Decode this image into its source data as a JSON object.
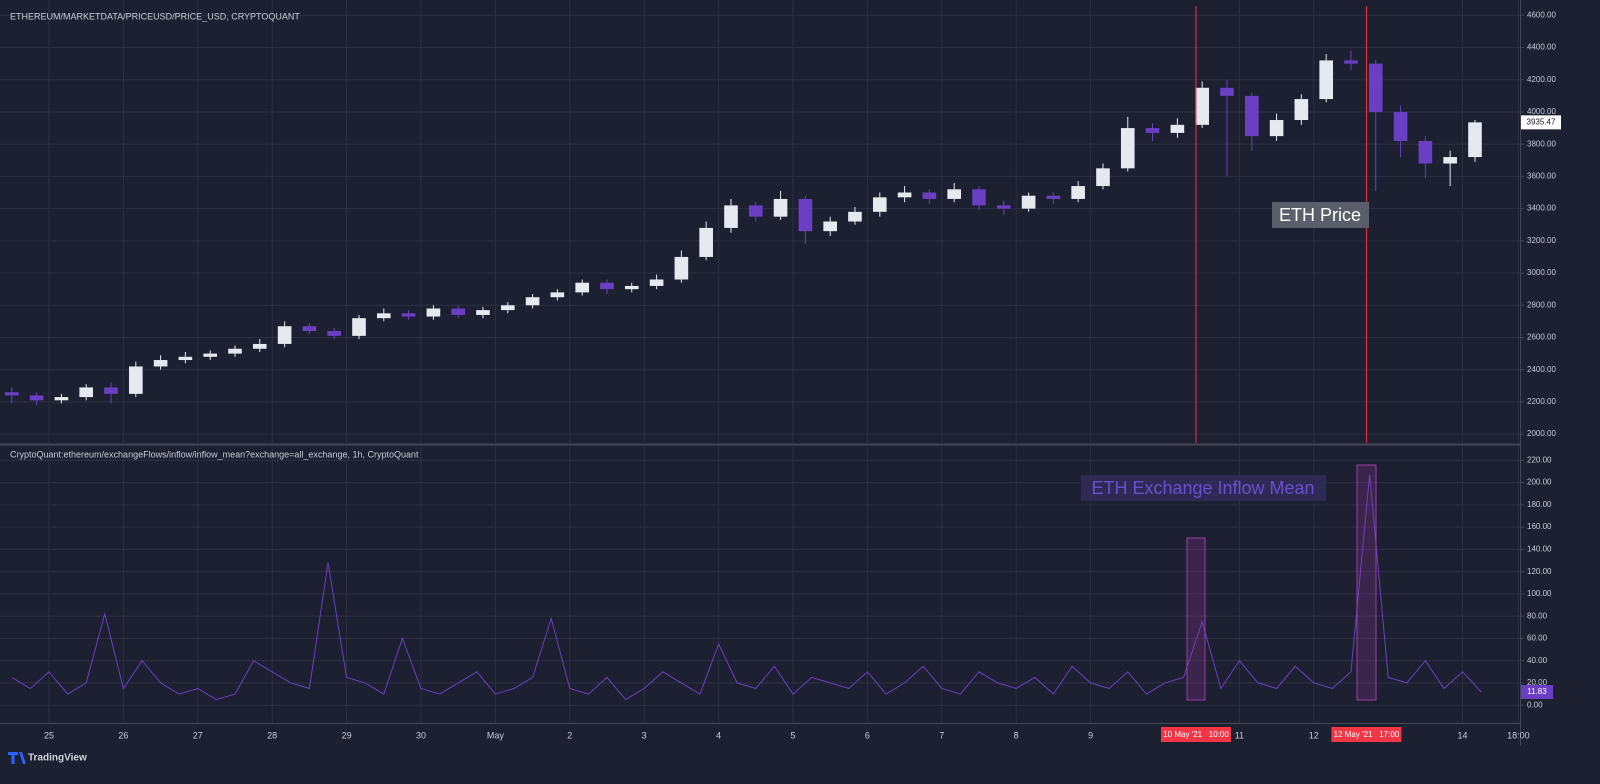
{
  "chart_data": [
    {
      "type": "candlestick",
      "title": "ETHEREUM/MARKETDATA/PRICEUSD/PRICE_USD, CRYPTOQUANT",
      "annotation": "ETH Price",
      "up_color": "#e6e9f0",
      "down_color": "#6a3fc4",
      "x": [
        0.5,
        0.833,
        1.167,
        1.5,
        1.833,
        2.167,
        2.5,
        2.833,
        3.167,
        3.5,
        3.833,
        4.167,
        4.5,
        4.833,
        5.167,
        5.5,
        5.833,
        6.167,
        6.5,
        6.833,
        7.167,
        7.5,
        7.833,
        8.167,
        8.5,
        8.833,
        9.167,
        9.5,
        9.833,
        10.167,
        10.5,
        10.833,
        11.167,
        11.5,
        11.833,
        12.167,
        12.5,
        12.833,
        13.167,
        13.5,
        13.833,
        14.167,
        14.5,
        14.833,
        15.167,
        15.5,
        15.833,
        16.167,
        16.5,
        16.833,
        17.167,
        17.5,
        17.833,
        18.167,
        18.5,
        18.833,
        19.167,
        19.5,
        19.833,
        20.167
      ],
      "open": [
        2260,
        2240,
        2210,
        2230,
        2290,
        2250,
        2420,
        2460,
        2480,
        2500,
        2530,
        2560,
        2670,
        2640,
        2610,
        2720,
        2750,
        2730,
        2780,
        2740,
        2770,
        2800,
        2850,
        2880,
        2940,
        2900,
        2920,
        2960,
        3100,
        3280,
        3420,
        3350,
        3460,
        3260,
        3320,
        3380,
        3470,
        3500,
        3460,
        3520,
        3420,
        3400,
        3480,
        3460,
        3540,
        3650,
        3900,
        3870,
        3920,
        4150,
        4100,
        3850,
        3950,
        4080,
        4320,
        4300,
        4000,
        3820,
        3680,
        3720
      ],
      "high": [
        2290,
        2260,
        2250,
        2310,
        2320,
        2450,
        2490,
        2510,
        2520,
        2550,
        2590,
        2700,
        2690,
        2660,
        2740,
        2780,
        2770,
        2800,
        2800,
        2790,
        2820,
        2870,
        2900,
        2960,
        2960,
        2940,
        2990,
        3140,
        3320,
        3460,
        3440,
        3510,
        3480,
        3350,
        3410,
        3500,
        3540,
        3520,
        3560,
        3540,
        3450,
        3500,
        3500,
        3570,
        3680,
        3970,
        3930,
        3960,
        4190,
        4200,
        4120,
        3990,
        4110,
        4360,
        4380,
        4320,
        4040,
        3850,
        3760,
        3950
      ],
      "low": [
        2190,
        2180,
        2190,
        2210,
        2190,
        2230,
        2400,
        2440,
        2460,
        2480,
        2510,
        2540,
        2620,
        2590,
        2590,
        2700,
        2710,
        2710,
        2720,
        2720,
        2750,
        2780,
        2830,
        2860,
        2870,
        2880,
        2900,
        2940,
        3080,
        3250,
        3320,
        3330,
        3180,
        3230,
        3300,
        3350,
        3440,
        3430,
        3440,
        3390,
        3360,
        3380,
        3430,
        3440,
        3520,
        3630,
        3820,
        3840,
        3900,
        3600,
        3760,
        3820,
        3920,
        4060,
        4260,
        3510,
        3720,
        3590,
        3540,
        3690
      ],
      "close": [
        2240,
        2210,
        2230,
        2290,
        2250,
        2420,
        2460,
        2480,
        2500,
        2530,
        2560,
        2670,
        2640,
        2610,
        2720,
        2750,
        2730,
        2780,
        2740,
        2770,
        2800,
        2850,
        2880,
        2940,
        2900,
        2920,
        2960,
        3100,
        3280,
        3420,
        3350,
        3460,
        3260,
        3320,
        3380,
        3470,
        3500,
        3460,
        3520,
        3420,
        3400,
        3480,
        3460,
        3540,
        3650,
        3900,
        3870,
        3920,
        4150,
        4100,
        3850,
        3950,
        4080,
        4320,
        4300,
        4000,
        3820,
        3680,
        3720,
        3935.47
      ],
      "xlim": [
        0.3414,
        20.772
      ],
      "ylim": [
        1945,
        4695
      ],
      "yticks": [
        {
          "value": 2000,
          "label": "2000.00"
        },
        {
          "value": 2200,
          "label": "2200.00"
        },
        {
          "value": 2400,
          "label": "2400.00"
        },
        {
          "value": 2600,
          "label": "2600.00"
        },
        {
          "value": 2800,
          "label": "2800.00"
        },
        {
          "value": 3000,
          "label": "3000.00"
        },
        {
          "value": 3200,
          "label": "3200.00"
        },
        {
          "value": 3400,
          "label": "3400.00"
        },
        {
          "value": 3600,
          "label": "3600.00"
        },
        {
          "value": 3800,
          "label": "3800.00"
        },
        {
          "value": 4000,
          "label": "4000.00"
        },
        {
          "value": 4200,
          "label": "4200.00"
        },
        {
          "value": 4400,
          "label": "4400.00"
        },
        {
          "value": 4600,
          "label": "4600.00"
        }
      ],
      "grid": true
    },
    {
      "type": "line",
      "title": "CryptoQuant:ethereum/exchangeFlows/inflow/inflow_mean?exchange=all_exchange, 1h, CryptoQuant",
      "annotation": "ETH Exchange Inflow Mean",
      "color": "#6a3fc4",
      "x": [
        0.5,
        0.75,
        1,
        1.25,
        1.5,
        1.75,
        2,
        2.25,
        2.5,
        2.75,
        3,
        3.25,
        3.5,
        3.75,
        4,
        4.25,
        4.5,
        4.75,
        5,
        5.25,
        5.5,
        5.75,
        6,
        6.25,
        6.5,
        6.75,
        7,
        7.25,
        7.5,
        7.75,
        8,
        8.25,
        8.5,
        8.75,
        9,
        9.25,
        9.5,
        9.75,
        10,
        10.25,
        10.5,
        10.75,
        11,
        11.25,
        11.5,
        11.75,
        12,
        12.25,
        12.5,
        12.75,
        13,
        13.25,
        13.5,
        13.75,
        14,
        14.25,
        14.5,
        14.75,
        15,
        15.25,
        15.5,
        15.75,
        16,
        16.25,
        16.5,
        16.75,
        17,
        17.25,
        17.5,
        17.75,
        18,
        18.25,
        18.5,
        18.75,
        19,
        19.25,
        19.5,
        19.75,
        20,
        20.25
      ],
      "values": [
        25,
        15,
        30,
        10,
        20,
        82,
        15,
        40,
        20,
        10,
        15,
        5,
        10,
        40,
        30,
        20,
        15,
        128,
        25,
        20,
        10,
        60,
        15,
        10,
        20,
        30,
        10,
        15,
        25,
        78,
        15,
        10,
        25,
        5,
        15,
        30,
        20,
        10,
        55,
        20,
        15,
        35,
        10,
        25,
        20,
        15,
        30,
        10,
        20,
        35,
        15,
        10,
        30,
        20,
        15,
        25,
        10,
        35,
        20,
        15,
        30,
        10,
        20,
        25,
        75,
        15,
        40,
        20,
        15,
        35,
        20,
        15,
        30,
        207,
        25,
        20,
        40,
        15,
        30,
        11.83
      ],
      "xlim": [
        0.3414,
        20.772
      ],
      "ylim": [
        -16,
        232
      ],
      "yticks": [
        {
          "value": 0,
          "label": "0.00"
        },
        {
          "value": 20,
          "label": "20.00"
        },
        {
          "value": 40,
          "label": "40.00"
        },
        {
          "value": 60,
          "label": "60.00"
        },
        {
          "value": 80,
          "label": "80.00"
        },
        {
          "value": 100,
          "label": "100.00"
        },
        {
          "value": 120,
          "label": "120.00"
        },
        {
          "value": 140,
          "label": "140.00"
        },
        {
          "value": 160,
          "label": "160.00"
        },
        {
          "value": 180,
          "label": "180.00"
        },
        {
          "value": 200,
          "label": "200.00"
        },
        {
          "value": 220,
          "label": "220.00"
        }
      ],
      "xticks": [
        {
          "value": 1,
          "label": "25"
        },
        {
          "value": 2,
          "label": "26"
        },
        {
          "value": 3,
          "label": "27"
        },
        {
          "value": 4,
          "label": "28"
        },
        {
          "value": 5,
          "label": "29"
        },
        {
          "value": 6,
          "label": "30"
        },
        {
          "value": 7,
          "label": "May"
        },
        {
          "value": 8,
          "label": "2"
        },
        {
          "value": 9,
          "label": "3"
        },
        {
          "value": 10,
          "label": "4"
        },
        {
          "value": 11,
          "label": "5"
        },
        {
          "value": 12,
          "label": "6"
        },
        {
          "value": 13,
          "label": "7"
        },
        {
          "value": 14,
          "label": "8"
        },
        {
          "value": 15,
          "label": "9"
        },
        {
          "value": 17,
          "label": "11"
        },
        {
          "value": 18,
          "label": "12"
        },
        {
          "value": 20,
          "label": "14"
        },
        {
          "value": 20.75,
          "label": "18:00"
        }
      ],
      "markers": [
        {
          "x": 16.417,
          "label": "10 May '21   10:00"
        },
        {
          "x": 18.708,
          "label": "12 May '21   17:00"
        }
      ],
      "grid": true
    }
  ],
  "footer": {
    "brand": "TradingView"
  }
}
